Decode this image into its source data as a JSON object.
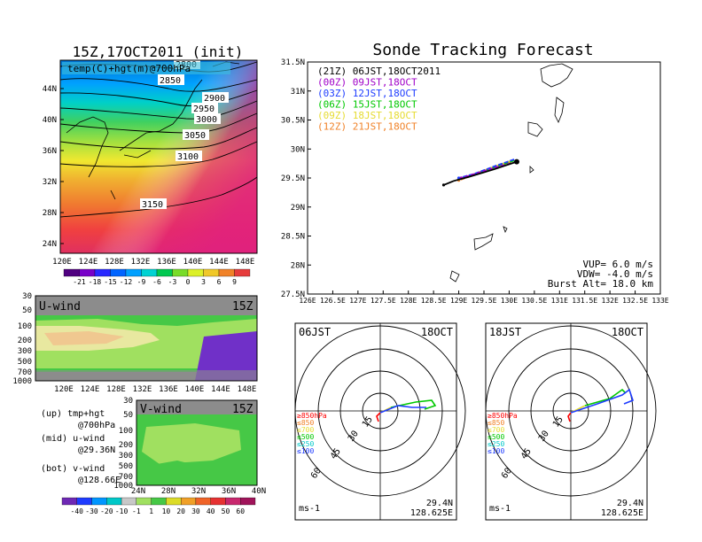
{
  "left_panel": {
    "title": "15Z,17OCT2011 (init)",
    "map_label": "temp(C)+hgt(m)@700hPa",
    "lat_ticks": [
      "44N",
      "40N",
      "36N",
      "32N",
      "28N",
      "24N"
    ],
    "lon_ticks": [
      "120E",
      "124E",
      "128E",
      "132E",
      "136E",
      "140E",
      "144E",
      "148E"
    ],
    "contours": [
      "2850",
      "2900",
      "2950",
      "3000",
      "3050",
      "3100",
      "3150",
      "2800"
    ],
    "temp_colorbar": [
      "-21",
      "-18",
      "-15",
      "-12",
      "-9",
      "-6",
      "-3",
      "0",
      "3",
      "6",
      "9"
    ],
    "uwind_label": "U-wind",
    "uwind_time": "15Z",
    "pressure_ticks": [
      "30",
      "50",
      "100",
      "200",
      "300",
      "500",
      "700",
      "1000"
    ],
    "vwind_label": "V-wind",
    "vwind_time": "15Z",
    "vwind_lat_ticks": [
      "24N",
      "28N",
      "32N",
      "36N",
      "40N"
    ],
    "vwind_p_ticks": [
      "30",
      "50",
      "100",
      "200",
      "300",
      "500",
      "700",
      "1000"
    ],
    "wind_colorbar": [
      "-40",
      "-30",
      "-20",
      "-10",
      "-1",
      "1",
      "10",
      "20",
      "30",
      "40",
      "50",
      "60"
    ],
    "notes": [
      {
        "a": "(up) tmp+hgt",
        "b": "@700hPa"
      },
      {
        "a": "(mid) u-wind",
        "b": "@29.36N"
      },
      {
        "a": "(bot) v-wind",
        "b": "@128.66E"
      }
    ]
  },
  "track_panel": {
    "title": "Sonde Tracking Forecast",
    "lat_ticks": [
      "31.5N",
      "31N",
      "30.5N",
      "30N",
      "29.5N",
      "29N",
      "28.5N",
      "28N",
      "27.5N"
    ],
    "lon_ticks": [
      "126E",
      "126.5E",
      "127E",
      "127.5E",
      "128E",
      "128.5E",
      "129E",
      "129.5E",
      "130E",
      "130.5E",
      "131E",
      "131.5E",
      "132E",
      "132.5E",
      "133E"
    ],
    "legend": [
      {
        "text": "(21Z) 06JST,18OCT2011",
        "color": "#000000"
      },
      {
        "text": "(00Z) 09JST,18OCT",
        "color": "#a000c8"
      },
      {
        "text": "(03Z) 12JST,18OCT",
        "color": "#1e3cff"
      },
      {
        "text": "(06Z) 15JST,18OCT",
        "color": "#00c800"
      },
      {
        "text": "(09Z) 18JST,18OCT",
        "color": "#e6dc32"
      },
      {
        "text": "(12Z) 21JST,18OCT",
        "color": "#f08228"
      }
    ],
    "params": [
      "VUP= 6.0 m/s",
      "VDW= -4.0 m/s",
      "Burst Alt= 18.0 km"
    ]
  },
  "polar_left": {
    "time": "06JST",
    "date": "18OCT",
    "lat": "29.4N",
    "lon": "128.625E",
    "unit": "ms-1",
    "rings": [
      "15",
      "30",
      "45",
      "60"
    ],
    "levels": [
      {
        "t": "≥850hPa",
        "c": "#ff0000"
      },
      {
        "t": "≤850",
        "c": "#f08228"
      },
      {
        "t": "≤700",
        "c": "#e6dc32"
      },
      {
        "t": "≤500",
        "c": "#00c800"
      },
      {
        "t": "≤250",
        "c": "#00c8c8"
      },
      {
        "t": "≤100",
        "c": "#1e3cff"
      }
    ]
  },
  "polar_right": {
    "time": "18JST",
    "date": "18OCT",
    "lat": "29.4N",
    "lon": "128.625E",
    "unit": "ms-1",
    "rings": [
      "15",
      "30",
      "45",
      "60"
    ],
    "levels": [
      {
        "t": "≥850hPa",
        "c": "#ff0000"
      },
      {
        "t": "≤850",
        "c": "#f08228"
      },
      {
        "t": "≤700",
        "c": "#e6dc32"
      },
      {
        "t": "≤500",
        "c": "#00c800"
      },
      {
        "t": "≤250",
        "c": "#00c8c8"
      },
      {
        "t": "≤100",
        "c": "#1e3cff"
      }
    ]
  },
  "chart_data": {
    "type": "line",
    "title": "Sonde Tracking Forecast",
    "xlim": [
      126,
      133
    ],
    "ylim": [
      27.5,
      31.5
    ],
    "launch_point": {
      "lon": 130.15,
      "lat": 29.78
    },
    "series": [
      {
        "name": "(21Z) 06JST,18OCT2011",
        "color": "#000000",
        "points": [
          [
            130.15,
            29.78
          ],
          [
            129.7,
            29.65
          ],
          [
            129.2,
            29.52
          ],
          [
            128.9,
            29.45
          ],
          [
            128.7,
            29.38
          ]
        ]
      },
      {
        "name": "(00Z) 09JST,18OCT",
        "color": "#a000c8",
        "points": [
          [
            130.15,
            29.78
          ],
          [
            129.8,
            29.7
          ],
          [
            129.35,
            29.58
          ],
          [
            129.05,
            29.5
          ]
        ]
      },
      {
        "name": "(03Z) 12JST,18OCT",
        "color": "#1e3cff",
        "points": [
          [
            130.1,
            29.82
          ],
          [
            129.7,
            29.7
          ],
          [
            129.3,
            29.57
          ],
          [
            129.0,
            29.5
          ]
        ]
      },
      {
        "name": "(06Z) 15JST,18OCT",
        "color": "#00c800",
        "points": [
          [
            130.1,
            29.8
          ],
          [
            129.7,
            29.68
          ],
          [
            129.3,
            29.56
          ],
          [
            129.05,
            29.5
          ]
        ]
      },
      {
        "name": "(09Z) 18JST,18OCT",
        "color": "#e6dc32",
        "points": [
          [
            130.05,
            29.8
          ],
          [
            129.65,
            29.68
          ],
          [
            129.25,
            29.55
          ],
          [
            129.0,
            29.48
          ]
        ]
      },
      {
        "name": "(12Z) 21JST,18OCT",
        "color": "#f08228",
        "points": [
          [
            130.05,
            29.78
          ],
          [
            129.6,
            29.65
          ],
          [
            129.2,
            29.52
          ],
          [
            129.0,
            29.46
          ]
        ]
      }
    ]
  }
}
